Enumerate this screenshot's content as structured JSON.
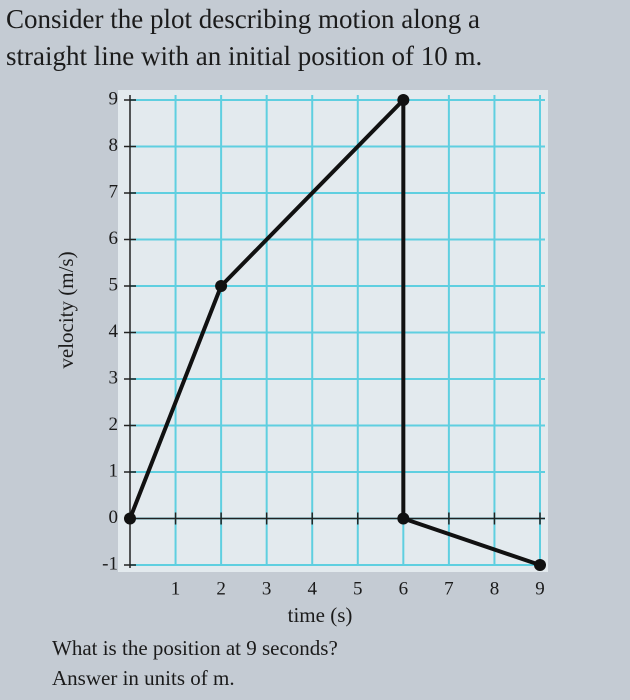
{
  "chart_data": {
    "type": "line",
    "title": [
      "Consider the plot describing motion along a",
      "straight line with an initial position of 10 m."
    ],
    "question": [
      "What is the position at 9 seconds?",
      "Answer in units of m."
    ],
    "x_label": "time (s)",
    "y_label": "velocity (m/s)",
    "x": [
      0,
      2,
      6,
      6,
      9
    ],
    "series": [
      {
        "color": "#111111",
        "values": [
          0,
          5,
          9,
          0,
          -1
        ]
      }
    ],
    "xlim": [
      0,
      9
    ],
    "ylim": [
      -1,
      9
    ],
    "xticks": [
      1,
      2,
      3,
      4,
      5,
      6,
      7,
      8,
      9
    ],
    "yticks": [
      -1,
      0,
      1,
      2,
      3,
      4,
      5,
      6,
      7,
      8,
      9
    ],
    "grid": true
  }
}
